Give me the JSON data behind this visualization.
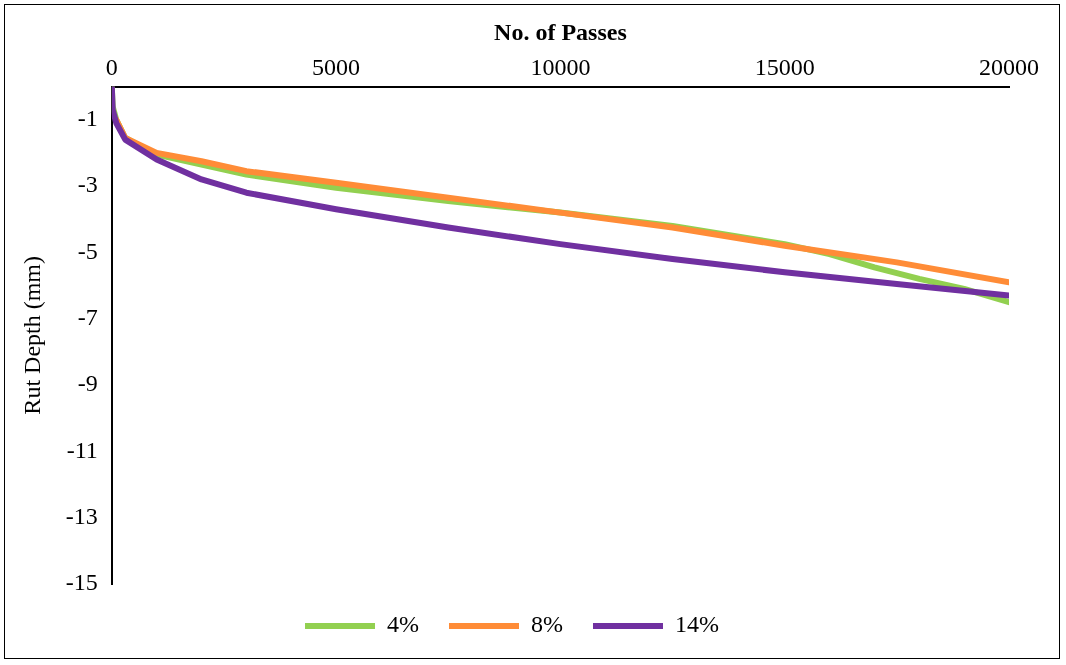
{
  "chart_data": {
    "type": "line",
    "xlabel": "No. of Passes",
    "ylabel": "Rut Depth (mm)",
    "xlim": [
      0,
      20000
    ],
    "xticks": [
      0,
      5000,
      10000,
      15000,
      20000
    ],
    "ylim": [
      -15,
      0
    ],
    "yticks": [
      -1,
      -3,
      -5,
      -7,
      -9,
      -11,
      -13,
      -15
    ],
    "grid": false,
    "legend": "bottom",
    "marker": "none",
    "line_style": "solid",
    "series": [
      {
        "name": "4%",
        "color": "#92d050",
        "x": [
          0,
          20,
          100,
          300,
          1000,
          2000,
          3000,
          5000,
          7500,
          10000,
          12500,
          15000,
          16000,
          17000,
          18000,
          19000,
          20000
        ],
        "values": [
          0,
          -0.6,
          -1.0,
          -1.55,
          -2.05,
          -2.35,
          -2.65,
          -3.05,
          -3.45,
          -3.8,
          -4.2,
          -4.75,
          -5.05,
          -5.45,
          -5.8,
          -6.1,
          -6.5
        ]
      },
      {
        "name": "8%",
        "color": "#ff8c37",
        "x": [
          100,
          300,
          1000,
          2000,
          3000,
          5000,
          7500,
          10000,
          12500,
          15000,
          17500,
          20000
        ],
        "values": [
          -1.0,
          -1.55,
          -2.0,
          -2.25,
          -2.55,
          -2.9,
          -3.35,
          -3.8,
          -4.25,
          -4.8,
          -5.3,
          -5.9
        ]
      },
      {
        "name": "14%",
        "color": "#7030a0",
        "x": [
          0,
          20,
          100,
          300,
          1000,
          2000,
          3000,
          5000,
          7500,
          10000,
          12500,
          15000,
          17500,
          20000
        ],
        "values": [
          0,
          -0.7,
          -1.1,
          -1.6,
          -2.2,
          -2.8,
          -3.2,
          -3.7,
          -4.25,
          -4.75,
          -5.2,
          -5.6,
          -5.95,
          -6.3
        ]
      }
    ]
  }
}
